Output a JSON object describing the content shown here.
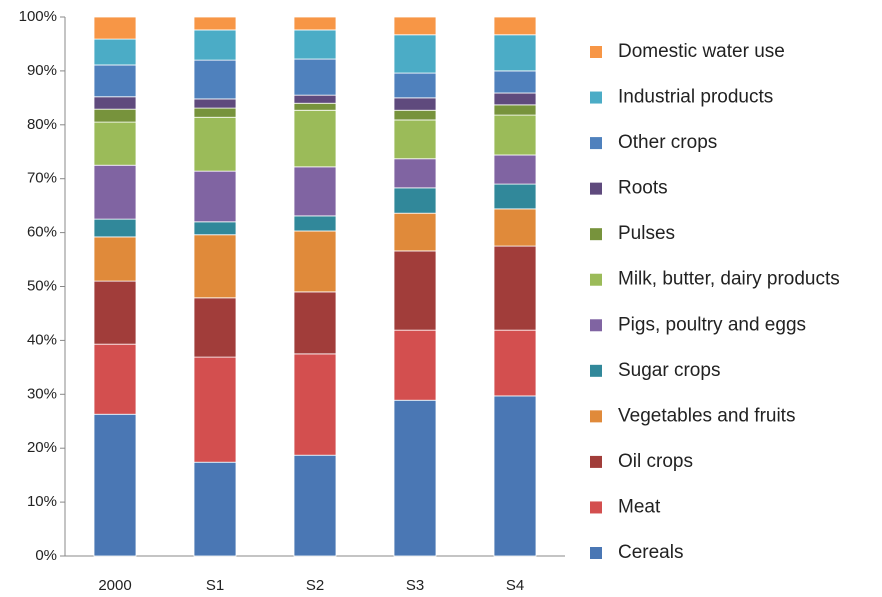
{
  "chart_data": {
    "type": "stacked_bar",
    "categories": [
      "2000",
      "S1",
      "S2",
      "S3",
      "S4"
    ],
    "series": [
      {
        "name": "Cereals",
        "color": "#4a77b4",
        "values": [
          26.3,
          17.4,
          18.7,
          28.9,
          29.7
        ]
      },
      {
        "name": "Meat",
        "color": "#d34f4f",
        "values": [
          13.0,
          19.5,
          18.8,
          13.0,
          12.2
        ]
      },
      {
        "name": "Oil crops",
        "color": "#a13d3a",
        "values": [
          11.7,
          11.0,
          11.5,
          14.7,
          15.6
        ]
      },
      {
        "name": "Vegetables and fruits",
        "color": "#e08a3a",
        "values": [
          8.2,
          11.7,
          11.3,
          7.0,
          6.9
        ]
      },
      {
        "name": "Sugar crops",
        "color": "#31889a",
        "values": [
          3.3,
          2.4,
          2.8,
          4.7,
          4.6
        ]
      },
      {
        "name": "Pigs, poultry and eggs",
        "color": "#8064a2",
        "values": [
          10.0,
          9.4,
          9.1,
          5.4,
          5.4
        ]
      },
      {
        "name": "Milk, butter, dairy products",
        "color": "#9bbb59",
        "values": [
          8.0,
          10.0,
          10.5,
          7.2,
          7.4
        ]
      },
      {
        "name": "Pulses",
        "color": "#77933c",
        "values": [
          2.4,
          1.7,
          1.3,
          1.8,
          1.9
        ]
      },
      {
        "name": "Roots",
        "color": "#5f4a7d",
        "values": [
          2.3,
          1.7,
          1.5,
          2.3,
          2.2
        ]
      },
      {
        "name": "Other crops",
        "color": "#4f81bd",
        "values": [
          5.9,
          7.2,
          6.7,
          4.6,
          4.1
        ]
      },
      {
        "name": "Industrial products",
        "color": "#4bacc6",
        "values": [
          4.8,
          5.6,
          5.4,
          7.1,
          6.7
        ]
      },
      {
        "name": "Domestic water use",
        "color": "#f79646",
        "values": [
          4.1,
          2.4,
          2.4,
          3.3,
          3.3
        ]
      }
    ],
    "ylim": [
      0,
      100
    ],
    "yticks": [
      {
        "value": 0,
        "label": "0%"
      },
      {
        "value": 10,
        "label": "10%"
      },
      {
        "value": 20,
        "label": "20%"
      },
      {
        "value": 30,
        "label": "30%"
      },
      {
        "value": 40,
        "label": "40%"
      },
      {
        "value": 50,
        "label": "50%"
      },
      {
        "value": 60,
        "label": "60%"
      },
      {
        "value": 70,
        "label": "70%"
      },
      {
        "value": 80,
        "label": "80%"
      },
      {
        "value": 90,
        "label": "90%"
      },
      {
        "value": 100,
        "label": "100%"
      }
    ],
    "legend": "right"
  }
}
